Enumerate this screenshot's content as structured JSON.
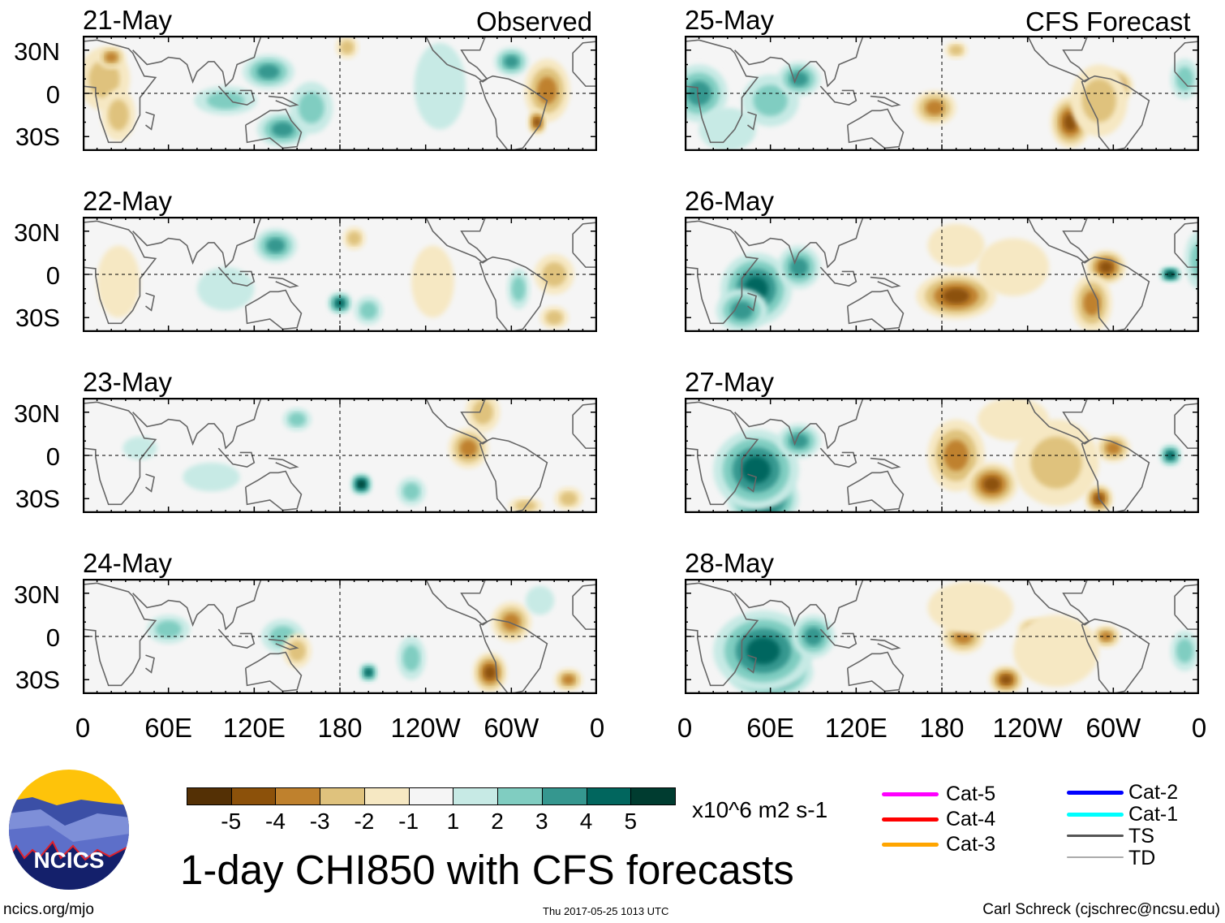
{
  "figure": {
    "title": "1-day CHI850 with CFS forecasts",
    "left_header": "Observed",
    "right_header": "CFS Forecast",
    "units": "x10^6 m2 s-1",
    "footer_left": "ncics.org/mjo",
    "footer_center": "Thu 2017-05-25 1013 UTC",
    "footer_right": "Carl Schreck (cjschrec@ncsu.edu)",
    "logo_text": "NCICS"
  },
  "panels": {
    "observed": [
      "21-May",
      "22-May",
      "23-May",
      "24-May"
    ],
    "forecast": [
      "25-May",
      "26-May",
      "27-May",
      "28-May"
    ]
  },
  "lat_labels": [
    "30N",
    "0",
    "30S"
  ],
  "lon_labels": [
    "0",
    "60E",
    "120E",
    "180",
    "120W",
    "60W",
    "0"
  ],
  "colorbar": {
    "labels": [
      "-5",
      "-4",
      "-3",
      "-2",
      "-1",
      "1",
      "2",
      "3",
      "4",
      "5"
    ],
    "colors": [
      "#543005",
      "#8c510a",
      "#bf812d",
      "#dfc27d",
      "#f6e8c3",
      "#f5f5f5",
      "#c7eae5",
      "#80cdc1",
      "#35978f",
      "#01665e",
      "#003c30"
    ]
  },
  "storm_legend": [
    {
      "label": "Cat-5",
      "color": "#ff00ff"
    },
    {
      "label": "Cat-4",
      "color": "#ff0000"
    },
    {
      "label": "Cat-3",
      "color": "#ffa500"
    },
    {
      "label": "Cat-2",
      "color": "#0000ff"
    },
    {
      "label": "Cat-1",
      "color": "#00ffff"
    },
    {
      "label": "TS",
      "color": "#555555"
    },
    {
      "label": "TD",
      "color": "#aaaaaa"
    }
  ]
}
